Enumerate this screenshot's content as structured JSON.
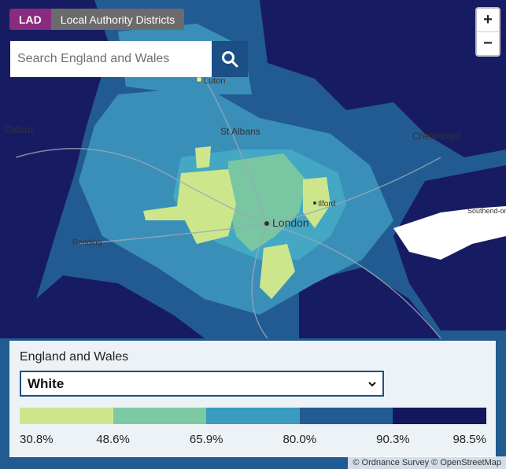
{
  "header": {
    "badge": "LAD",
    "title": "Local Authority Districts"
  },
  "search": {
    "placeholder": "Search England and Wales"
  },
  "zoom": {
    "in_label": "+",
    "out_label": "−"
  },
  "map": {
    "places": [
      "Luton",
      "Oxford",
      "St Albans",
      "Chelmsford",
      "Ilford",
      "London",
      "Reading",
      "Southend-on-Sea"
    ]
  },
  "legend": {
    "title": "England and Wales",
    "selected": "White",
    "colors": [
      "#cde68c",
      "#7ccaa3",
      "#3a9bbf",
      "#225b91",
      "#13175c"
    ],
    "breaks": [
      "30.8%",
      "48.6%",
      "65.9%",
      "80.0%",
      "90.3%",
      "98.5%"
    ]
  },
  "attribution": "© Ordnance Survey © OpenStreetMap"
}
